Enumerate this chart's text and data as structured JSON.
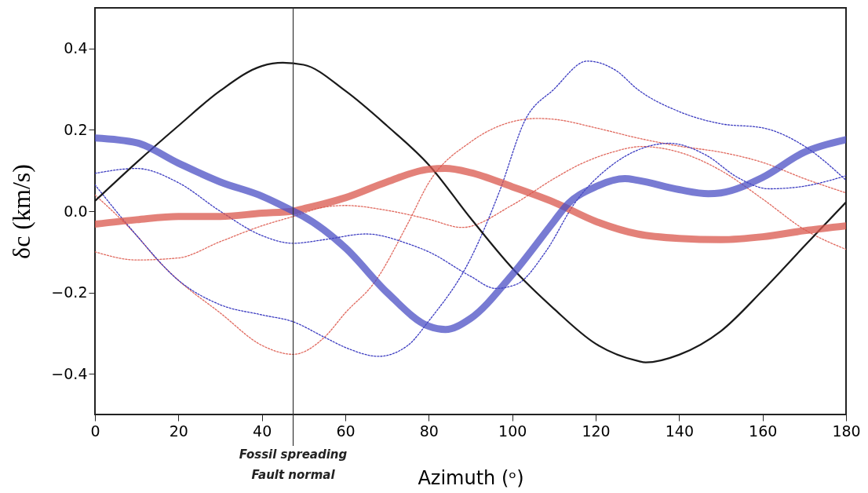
{
  "chart_data": {
    "type": "line",
    "xlabel": "Azimuth (ᵒ)",
    "ylabel": "δc  (km/s)",
    "xlim": [
      0,
      180
    ],
    "xticks": [
      0,
      20,
      40,
      60,
      80,
      100,
      120,
      140,
      160,
      180
    ],
    "ylim": [
      -0.5,
      0.5
    ],
    "yticks": [
      {
        "value": -0.4,
        "label": "−0.4"
      },
      {
        "value": -0.2,
        "label": "−0.2"
      },
      {
        "value": 0,
        "label": "0.0"
      },
      {
        "value": 0.2,
        "label": "0.2"
      },
      {
        "value": 0.4,
        "label": "0.4"
      }
    ],
    "grid": false,
    "ref_lines": [
      {
        "axis": "x",
        "value": 47.5,
        "label": "Fossil spreading\nFault normal",
        "color": "#333333"
      }
    ],
    "series": [
      {
        "color": "#e0685d",
        "line_style": "dotted",
        "x": [
          0,
          10,
          20,
          30,
          40,
          47.5,
          55,
          60,
          70,
          80,
          88,
          100,
          110,
          116,
          124,
          131,
          140,
          150,
          160,
          170,
          180
        ],
        "values": [
          -0.1,
          -0.12,
          -0.115,
          -0.075,
          -0.036,
          -0.013,
          0.01,
          0.014,
          0.002,
          -0.02,
          -0.04,
          0.015,
          0.08,
          0.114,
          0.145,
          0.159,
          0.145,
          0.1,
          0.03,
          -0.045,
          -0.094
        ]
      },
      {
        "color": "#e0685d",
        "line_style": "dotted",
        "x": [
          0,
          10,
          15,
          20,
          30,
          40,
          47.5,
          55,
          60,
          67,
          75,
          80,
          90,
          100,
          106,
          110,
          120,
          130,
          140,
          150,
          160,
          170,
          180
        ],
        "values": [
          0.04,
          -0.06,
          -0.12,
          -0.17,
          -0.25,
          -0.33,
          -0.352,
          -0.31,
          -0.25,
          -0.175,
          -0.03,
          0.07,
          0.17,
          0.22,
          0.228,
          0.226,
          0.205,
          0.18,
          0.16,
          0.145,
          0.12,
          0.08,
          0.045
        ]
      },
      {
        "color": "#3a3ac0",
        "line_style": "dotted",
        "x": [
          0,
          10,
          20,
          30,
          40,
          47.5,
          55,
          65,
          75,
          80,
          90,
          96,
          101,
          108,
          115,
          124,
          130,
          137.6,
          146.6,
          154,
          161.6,
          169,
          180
        ],
        "values": [
          0.093,
          0.105,
          0.07,
          0.0,
          -0.06,
          -0.079,
          -0.07,
          -0.056,
          -0.08,
          -0.1,
          -0.16,
          -0.19,
          -0.18,
          -0.1,
          0.02,
          0.114,
          0.15,
          0.167,
          0.137,
          0.083,
          0.055,
          0.06,
          0.087
        ]
      },
      {
        "color": "#3a3ac0",
        "line_style": "dotted",
        "x": [
          0,
          10,
          20,
          30,
          40,
          47.5,
          55,
          60,
          68,
          75,
          80,
          90,
          97,
          103,
          110,
          118,
          125,
          130,
          140,
          150,
          160,
          170,
          180
        ],
        "values": [
          0.065,
          -0.06,
          -0.17,
          -0.23,
          -0.255,
          -0.272,
          -0.31,
          -0.335,
          -0.357,
          -0.33,
          -0.27,
          -0.117,
          0.05,
          0.222,
          0.3,
          0.369,
          0.345,
          0.3,
          0.245,
          0.215,
          0.205,
          0.16,
          0.076
        ]
      },
      {
        "color": "#1a1a1a",
        "line_style": "solid",
        "x": [
          0,
          10,
          20,
          30,
          40,
          45,
          50,
          60,
          70,
          80,
          90,
          100,
          110,
          120,
          130,
          132,
          140,
          150,
          160,
          170,
          180
        ],
        "values": [
          0.025,
          0.12,
          0.21,
          0.296,
          0.357,
          0.365,
          0.36,
          0.296,
          0.21,
          0.114,
          -0.017,
          -0.14,
          -0.24,
          -0.326,
          -0.368,
          -0.372,
          -0.353,
          -0.295,
          -0.195,
          -0.086,
          0.022
        ]
      },
      {
        "color": "#d9574c",
        "line_style": "solid",
        "x": [
          0,
          10,
          20,
          30,
          40,
          47.5,
          50,
          60,
          70,
          80,
          84,
          90,
          100,
          110,
          120,
          130,
          140,
          150,
          160,
          170,
          180
        ],
        "values": [
          -0.032,
          -0.021,
          -0.013,
          -0.013,
          -0.005,
          0.0,
          0.006,
          0.033,
          0.072,
          0.103,
          0.105,
          0.095,
          0.06,
          0.022,
          -0.025,
          -0.056,
          -0.067,
          -0.07,
          -0.063,
          -0.048,
          -0.036
        ]
      },
      {
        "color": "#4b4fc4",
        "line_style": "solid",
        "x": [
          0,
          10,
          20,
          30,
          40,
          47.5,
          50,
          60,
          70,
          80,
          84,
          90,
          100,
          110,
          113,
          120,
          127,
          130,
          140,
          147,
          150,
          160,
          170,
          180
        ],
        "values": [
          0.18,
          0.168,
          0.118,
          0.072,
          0.037,
          0.0,
          -0.013,
          -0.09,
          -0.2,
          -0.283,
          -0.291,
          -0.264,
          -0.156,
          -0.025,
          0.014,
          0.06,
          0.08,
          0.076,
          0.053,
          0.043,
          0.045,
          0.083,
          0.145,
          0.176
        ]
      }
    ]
  }
}
